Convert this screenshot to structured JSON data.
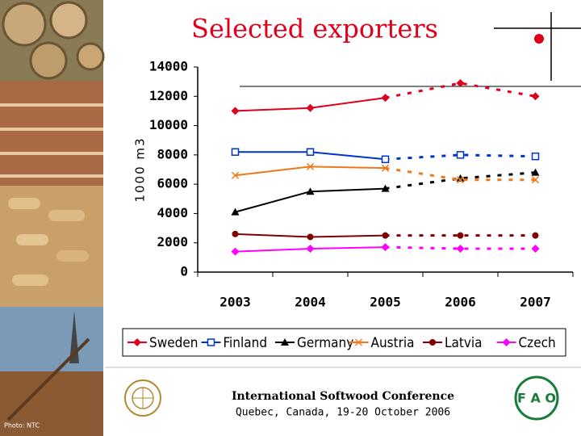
{
  "chart_data": {
    "type": "line",
    "title": "Selected exporters",
    "y_label": "1000 m3",
    "categories": [
      "2003",
      "2004",
      "2005",
      "2006",
      "2007"
    ],
    "forecast_start_index": 2,
    "series": [
      {
        "name": "Sweden",
        "color": "#e0001b",
        "marker": "diamond",
        "values": [
          11000,
          11200,
          11900,
          12900,
          12000
        ]
      },
      {
        "name": "Finland",
        "color": "#0033cc",
        "marker": "square-open",
        "values": [
          8200,
          8200,
          7700,
          8000,
          7900
        ]
      },
      {
        "name": "Germany",
        "color": "#000000",
        "marker": "triangle",
        "values": [
          4100,
          5500,
          5700,
          6400,
          6800
        ]
      },
      {
        "name": "Austria",
        "color": "#f07818",
        "marker": "x",
        "values": [
          6600,
          7200,
          7100,
          6300,
          6300
        ]
      },
      {
        "name": "Latvia",
        "color": "#800000",
        "marker": "circle",
        "values": [
          2600,
          2400,
          2500,
          2500,
          2500
        ]
      },
      {
        "name": "Czech",
        "color": "#ff00ff",
        "marker": "diamond",
        "values": [
          1400,
          1600,
          1700,
          1600,
          1600
        ]
      }
    ],
    "ylim": [
      0,
      14000
    ],
    "yticks": [
      0,
      2000,
      4000,
      6000,
      8000,
      10000,
      12000,
      14000
    ],
    "grid": false,
    "legend": "bottom"
  },
  "footer": {
    "conference": "International Softwood Conference",
    "place_date": "Quebec, Canada, 19-20 October 2006",
    "photo_credit": "Photo: NTC"
  }
}
